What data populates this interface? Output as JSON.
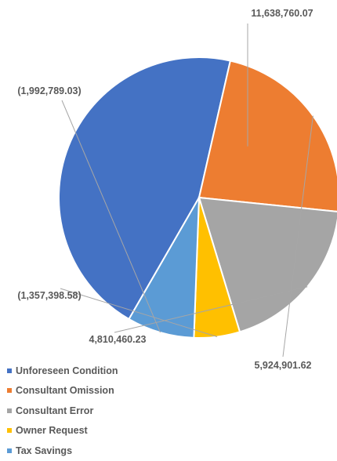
{
  "chart_data": {
    "type": "pie",
    "title": "",
    "legend_position": "bottom-left",
    "slices": [
      {
        "name": "Unforeseen Condition",
        "value": 11638760.07,
        "label": "11,638,760.07",
        "color": "#4472C4"
      },
      {
        "name": "Consultant Omission",
        "value": 5924901.62,
        "label": "5,924,901.62",
        "color": "#ED7D31"
      },
      {
        "name": "Consultant Error",
        "value": 4810460.23,
        "label": "4,810,460.23",
        "color": "#A5A5A5"
      },
      {
        "name": "Owner Request",
        "value": -1357398.58,
        "label": "(1,357,398.58)",
        "color": "#FFC000"
      },
      {
        "name": "Tax Savings",
        "value": -1992789.03,
        "label": "(1,992,789.03)",
        "color": "#5B9BD5"
      }
    ]
  }
}
